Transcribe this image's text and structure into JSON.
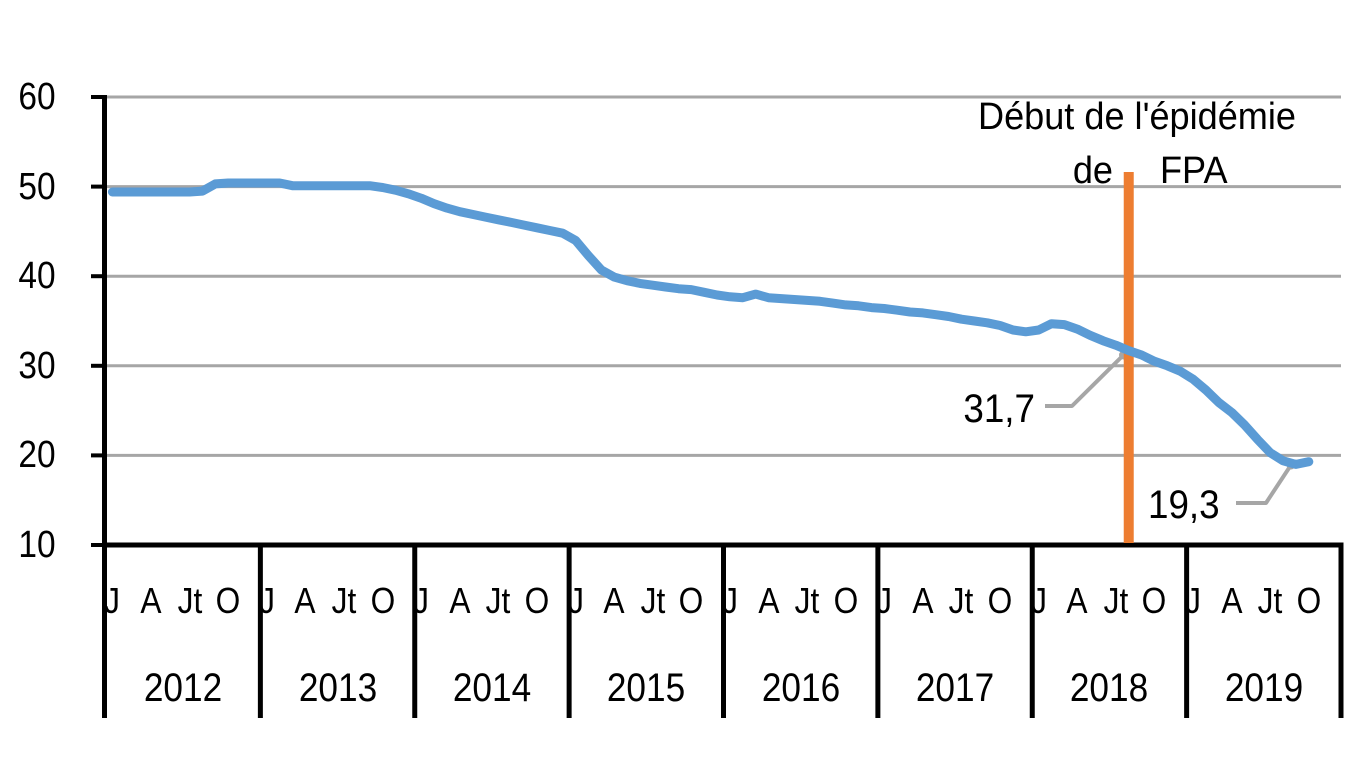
{
  "figure": {
    "annotation": {
      "line1": "Début de l'épidémie",
      "line2_left": "de",
      "line2_right": "FPA"
    },
    "value_labels": {
      "pre_epidemic": "31,7",
      "latest": "19,3"
    }
  },
  "chart_data": {
    "type": "line",
    "title": "",
    "x_start": "2012-01",
    "x_end": "2019-10",
    "y_axis": {
      "min": 10,
      "max": 60,
      "step": 10,
      "tick_labels": [
        "60",
        "50",
        "40",
        "30",
        "20",
        "10"
      ],
      "gridlines": true
    },
    "x_axis": {
      "years": [
        "2012",
        "2013",
        "2014",
        "2015",
        "2016",
        "2017",
        "2018",
        "2019"
      ],
      "month_tick_labels": [
        "J",
        "A",
        "Jt",
        "O"
      ],
      "month_tick_positions": [
        0,
        3,
        6,
        9
      ],
      "months_per_year": 12
    },
    "series": [
      {
        "name": "",
        "values": [
          49.4,
          49.4,
          49.4,
          49.4,
          49.4,
          49.4,
          49.4,
          49.5,
          50.3,
          50.4,
          50.4,
          50.4,
          50.4,
          50.4,
          50.1,
          50.1,
          50.1,
          50.1,
          50.1,
          50.1,
          50.1,
          49.9,
          49.6,
          49.2,
          48.7,
          48.1,
          47.6,
          47.2,
          46.9,
          46.6,
          46.3,
          46.0,
          45.7,
          45.4,
          45.1,
          44.8,
          44.0,
          42.3,
          40.7,
          39.9,
          39.5,
          39.2,
          39.0,
          38.8,
          38.6,
          38.5,
          38.2,
          37.9,
          37.7,
          37.6,
          38.0,
          37.6,
          37.5,
          37.4,
          37.3,
          37.2,
          37.0,
          36.8,
          36.7,
          36.5,
          36.4,
          36.2,
          36.0,
          35.9,
          35.7,
          35.5,
          35.2,
          35.0,
          34.8,
          34.5,
          34.0,
          33.8,
          34.0,
          34.7,
          34.6,
          34.1,
          33.4,
          32.8,
          32.3,
          31.7,
          31.2,
          30.5,
          30.0,
          29.4,
          28.5,
          27.3,
          25.9,
          24.8,
          23.4,
          21.8,
          20.3,
          19.4,
          19.0,
          19.3
        ]
      }
    ],
    "event_line": {
      "label": "Début de l'épidémie de FPA",
      "month_index": 79,
      "color": "#ED7D31"
    },
    "point_annotations": [
      {
        "label": "31,7",
        "month_index": 79,
        "value": 31.7
      },
      {
        "label": "19,3",
        "month_index": 93,
        "value": 19.3
      }
    ],
    "legend": {
      "visible": false
    },
    "colors": {
      "line": "#5B9BD5",
      "event_line": "#ED7D31",
      "gridline": "#A6A6A6",
      "leader": "#A6A6A6",
      "axis": "#000000",
      "text": "#000000"
    }
  }
}
